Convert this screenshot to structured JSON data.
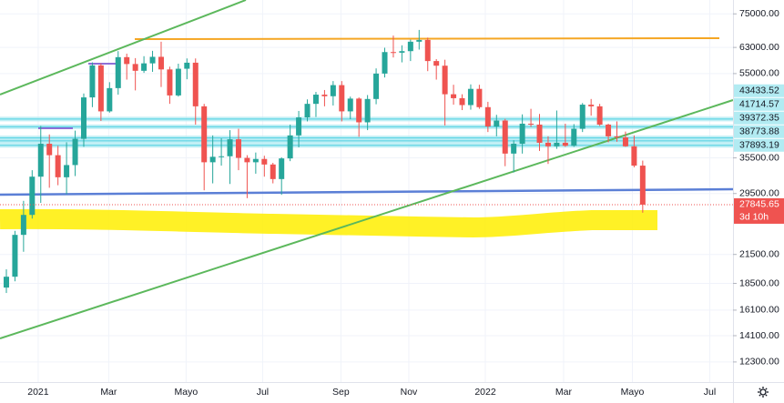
{
  "chart_data": {
    "type": "candlestick",
    "log_scale": true,
    "up_color": "#26a69a",
    "down_color": "#ef5350",
    "open": [
      18100,
      19150,
      23800,
      26400,
      32200,
      38200,
      36000,
      32100,
      34200,
      39200,
      48600,
      57400,
      45200,
      51000,
      59900,
      57800,
      55800,
      58000,
      60000,
      56200,
      49100,
      56400,
      58200,
      46400,
      34700,
      35700,
      35800,
      39100,
      35500,
      34700,
      35300,
      34300,
      31800,
      35400,
      39900,
      43800,
      47000,
      49300,
      48900,
      51800,
      45200,
      48300,
      42700,
      48200,
      55000,
      61500,
      61300,
      61800,
      64900,
      65500,
      58700,
      57300,
      49400,
      48400,
      46700,
      50800,
      46200,
      41800,
      43100,
      36300,
      38200,
      42400,
      42200,
      38400,
      37700,
      38400,
      37800,
      41300,
      46800,
      46400,
      42200,
      39700,
      39500,
      37700,
      34100
    ],
    "high": [
      19900,
      24300,
      28400,
      33300,
      41900,
      40100,
      37800,
      38500,
      40900,
      49600,
      58300,
      58000,
      52600,
      61800,
      61000,
      59600,
      60200,
      61900,
      64900,
      57000,
      57900,
      59500,
      59500,
      47000,
      39900,
      39300,
      41000,
      41300,
      36000,
      36500,
      35900,
      34600,
      35600,
      42200,
      45300,
      48100,
      50000,
      50500,
      52900,
      52900,
      48800,
      48600,
      49200,
      56500,
      62900,
      67000,
      63700,
      65600,
      69000,
      66300,
      59300,
      59100,
      51900,
      49400,
      52000,
      51900,
      47500,
      44400,
      43500,
      38900,
      44500,
      45800,
      44600,
      39700,
      45400,
      42400,
      42300,
      47200,
      48200,
      47000,
      42400,
      42900,
      40700,
      39900,
      35000
    ],
    "low": [
      17600,
      18700,
      21800,
      25900,
      28100,
      30400,
      30800,
      29400,
      32300,
      37600,
      46200,
      43000,
      44900,
      49300,
      53300,
      50400,
      55200,
      55500,
      51300,
      47000,
      48800,
      53400,
      42200,
      30000,
      31100,
      34100,
      31000,
      33300,
      28800,
      32700,
      32200,
      31100,
      29300,
      34900,
      37500,
      42900,
      43900,
      46400,
      46600,
      42900,
      43400,
      39600,
      41000,
      46900,
      53900,
      59800,
      58300,
      58700,
      62300,
      55700,
      53300,
      42000,
      46800,
      45500,
      45600,
      45800,
      40600,
      39700,
      34000,
      32900,
      36300,
      41700,
      36800,
      34400,
      37200,
      37600,
      37600,
      40600,
      44200,
      41900,
      38500,
      38600,
      37600,
      33800,
      26700
    ],
    "close": [
      19150,
      23800,
      26400,
      32200,
      38200,
      36000,
      32100,
      34200,
      39200,
      48600,
      57400,
      45200,
      51000,
      59900,
      57800,
      55800,
      58000,
      60000,
      56200,
      49100,
      56400,
      58200,
      46400,
      34700,
      35700,
      35800,
      39100,
      35500,
      34700,
      35300,
      34300,
      31800,
      35400,
      39900,
      43800,
      47000,
      49300,
      48900,
      51800,
      45200,
      48300,
      42700,
      48200,
      55000,
      61500,
      61300,
      61800,
      64900,
      65500,
      58700,
      57300,
      49400,
      48400,
      46700,
      50800,
      46200,
      41800,
      43100,
      36300,
      38200,
      42400,
      42200,
      38400,
      37700,
      38400,
      37800,
      41300,
      46800,
      46400,
      42200,
      39700,
      39500,
      37700,
      34100,
      27845.65
    ],
    "ylim": [
      11080,
      80600
    ],
    "xlim": [
      -0.74,
      84.5
    ],
    "yticks": [
      {
        "value": 75000,
        "label": "75000.00"
      },
      {
        "value": 63000,
        "label": "63000.00"
      },
      {
        "value": 55000,
        "label": "55000.00"
      },
      {
        "value": 35500,
        "label": "35500.00"
      },
      {
        "value": 29500,
        "label": "29500.00"
      },
      {
        "value": 21500,
        "label": "21500.00"
      },
      {
        "value": 18500,
        "label": "18500.00"
      },
      {
        "value": 16100,
        "label": "16100.00"
      },
      {
        "value": 14100,
        "label": "14100.00"
      },
      {
        "value": 12300,
        "label": "12300.00"
      }
    ],
    "xticks": [
      {
        "value": 3.7,
        "label": "2021"
      },
      {
        "value": 11.9,
        "label": "Mar"
      },
      {
        "value": 20.9,
        "label": "Mayo"
      },
      {
        "value": 29.8,
        "label": "Jul"
      },
      {
        "value": 38.9,
        "label": "Sep"
      },
      {
        "value": 46.8,
        "label": "Nov"
      },
      {
        "value": 55.7,
        "label": "2022"
      },
      {
        "value": 64.8,
        "label": "Mar"
      },
      {
        "value": 72.8,
        "label": "Mayo"
      },
      {
        "value": 81.8,
        "label": "Jul"
      }
    ],
    "levels": [
      43433.52,
      41714.57,
      39372.35,
      38773.88,
      37893.19
    ],
    "level_color": "#b2ebf2",
    "countdown": "3d 10h"
  }
}
